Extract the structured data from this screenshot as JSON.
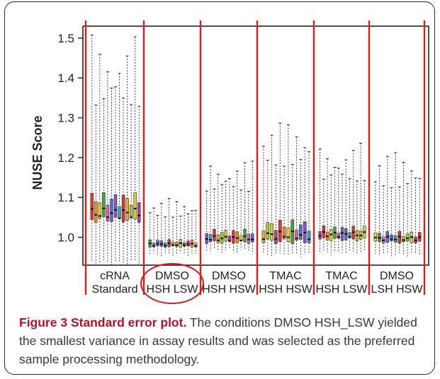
{
  "figure": {
    "number_label": "Figure 3",
    "title": "Standard error plot.",
    "description": "The conditions DMSO HSH_LSW yielded the smallest variance in assay results and was selected as the preferred sample processing methodology."
  },
  "chart_data": {
    "type": "box",
    "ylabel": "NUSE Score",
    "ylim": [
      0.93,
      1.53
    ],
    "yticks": [
      1.0,
      1.1,
      1.2,
      1.3,
      1.4,
      1.5
    ],
    "ytick_labels": [
      "1.0",
      "1.1",
      "1.2",
      "1.3",
      "1.4",
      "1.5"
    ],
    "grid": false,
    "groups": [
      {
        "label_line1": "cRNA",
        "label_line2": "Standard",
        "n": 13,
        "median": 1.06,
        "q1": 1.045,
        "q3": 1.095,
        "whisker_low": 0.93,
        "whisker_high": 1.52,
        "circled": false
      },
      {
        "label_line1": "DMSO",
        "label_line2": "HSH LSW",
        "n": 13,
        "median": 0.982,
        "q1": 0.977,
        "q3": 0.99,
        "whisker_low": 0.95,
        "whisker_high": 1.1,
        "circled": true
      },
      {
        "label_line1": "DMSO",
        "label_line2": "HSH HSW",
        "n": 13,
        "median": 0.997,
        "q1": 0.988,
        "q3": 1.012,
        "whisker_low": 0.96,
        "whisker_high": 1.2,
        "circled": false
      },
      {
        "label_line1": "TMAC",
        "label_line2": "HSH HSW",
        "n": 12,
        "median": 1.005,
        "q1": 0.99,
        "q3": 1.03,
        "whisker_low": 0.95,
        "whisker_high": 1.3,
        "circled": false
      },
      {
        "label_line1": "TMAC",
        "label_line2": "HSH LSW",
        "n": 13,
        "median": 1.007,
        "q1": 0.995,
        "q3": 1.02,
        "whisker_low": 0.955,
        "whisker_high": 1.24,
        "circled": false
      },
      {
        "label_line1": "DMSO",
        "label_line2": "LSH HSW",
        "n": 12,
        "median": 0.997,
        "q1": 0.988,
        "q3": 1.008,
        "whisker_low": 0.95,
        "whisker_high": 1.22,
        "circled": false
      }
    ],
    "colors": {
      "separator": "#e01b1b",
      "circle": "#d61a1a",
      "boxes": [
        "#e8362a",
        "#f28c22",
        "#e9d22a",
        "#3fa63a",
        "#e85fa8",
        "#4a6fd0",
        "#8a4fc9",
        "#31a9b5",
        "#c93a3a",
        "#f5a623",
        "#9bd12e",
        "#d9c83b",
        "#b2408c"
      ]
    }
  }
}
